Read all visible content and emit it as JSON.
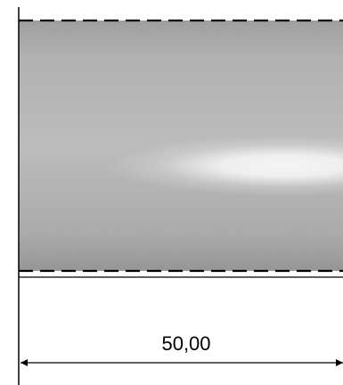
{
  "dimension": {
    "value_label": "50,00"
  },
  "colors": {
    "line": "#000000",
    "background": "#ffffff",
    "surface_dark": "#8e8e8e",
    "surface_mid": "#b4b4b4",
    "highlight": "#ffffff"
  }
}
